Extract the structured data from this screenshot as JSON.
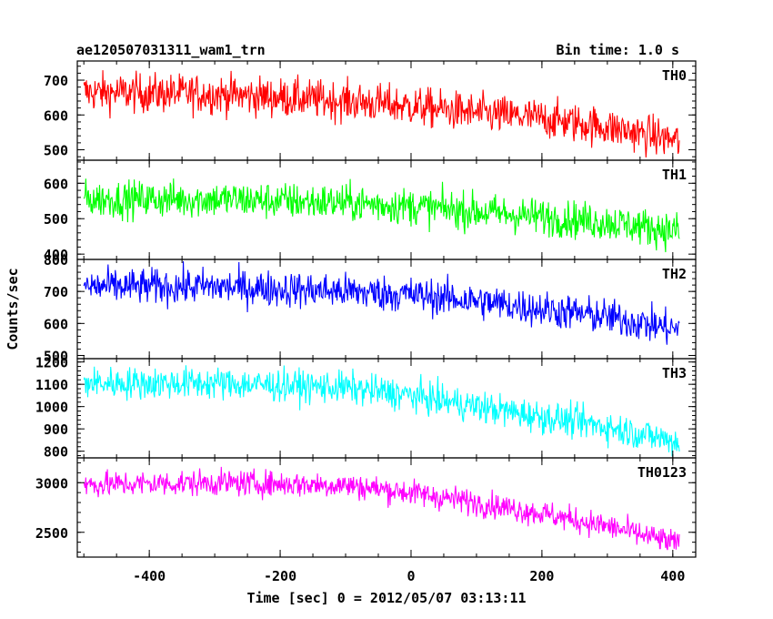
{
  "header": {
    "left_title": "ae120507031311_wam1_trn",
    "right_title": "Bin time: 1.0 s"
  },
  "chart_data": {
    "type": "line",
    "title": "ae120507031311_wam1_trn",
    "subtitle": "Bin time: 1.0 s",
    "xlabel": "Time [sec] 0 = 2012/05/07 03:13:11",
    "ylabel": "Counts/sec",
    "xlim": [
      -510,
      435
    ],
    "x_ticks": [
      -400,
      -200,
      0,
      200,
      400
    ],
    "x_start": -500,
    "x_end": 410,
    "x_step": 1,
    "grid": false,
    "panels": [
      {
        "name": "TH0",
        "color": "#ff0000",
        "ylim": [
          470,
          755
        ],
        "y_ticks": [
          500,
          600,
          700
        ],
        "trend": [
          [
            -500,
            665
          ],
          [
            -300,
            660
          ],
          [
            -100,
            640
          ],
          [
            0,
            625
          ],
          [
            100,
            605
          ],
          [
            200,
            590
          ],
          [
            300,
            565
          ],
          [
            410,
            525
          ]
        ],
        "noise": 28
      },
      {
        "name": "TH1",
        "color": "#00ff00",
        "ylim": [
          385,
          665
        ],
        "y_ticks": [
          400,
          500,
          600
        ],
        "trend": [
          [
            -500,
            555
          ],
          [
            -300,
            555
          ],
          [
            -100,
            545
          ],
          [
            0,
            535
          ],
          [
            100,
            520
          ],
          [
            200,
            505
          ],
          [
            300,
            490
          ],
          [
            410,
            465
          ]
        ],
        "noise": 26
      },
      {
        "name": "TH2",
        "color": "#0000ff",
        "ylim": [
          490,
          800
        ],
        "y_ticks": [
          500,
          600,
          700,
          800
        ],
        "trend": [
          [
            -500,
            715
          ],
          [
            -300,
            715
          ],
          [
            -100,
            700
          ],
          [
            0,
            690
          ],
          [
            100,
            670
          ],
          [
            200,
            645
          ],
          [
            300,
            620
          ],
          [
            410,
            580
          ]
        ],
        "noise": 28
      },
      {
        "name": "TH3",
        "color": "#00ffff",
        "ylim": [
          770,
          1215
        ],
        "y_ticks": [
          800,
          900,
          1000,
          1100,
          1200
        ],
        "trend": [
          [
            -500,
            1105
          ],
          [
            -300,
            1105
          ],
          [
            -100,
            1085
          ],
          [
            0,
            1050
          ],
          [
            100,
            1000
          ],
          [
            200,
            955
          ],
          [
            300,
            910
          ],
          [
            410,
            840
          ]
        ],
        "noise": 36
      },
      {
        "name": "TH0123",
        "color": "#ff00ff",
        "ylim": [
          2250,
          3250
        ],
        "y_ticks": [
          2500,
          3000
        ],
        "trend": [
          [
            -500,
            2980
          ],
          [
            -300,
            3000
          ],
          [
            -100,
            2975
          ],
          [
            0,
            2900
          ],
          [
            100,
            2800
          ],
          [
            200,
            2690
          ],
          [
            300,
            2560
          ],
          [
            410,
            2380
          ]
        ],
        "noise": 65
      }
    ]
  }
}
